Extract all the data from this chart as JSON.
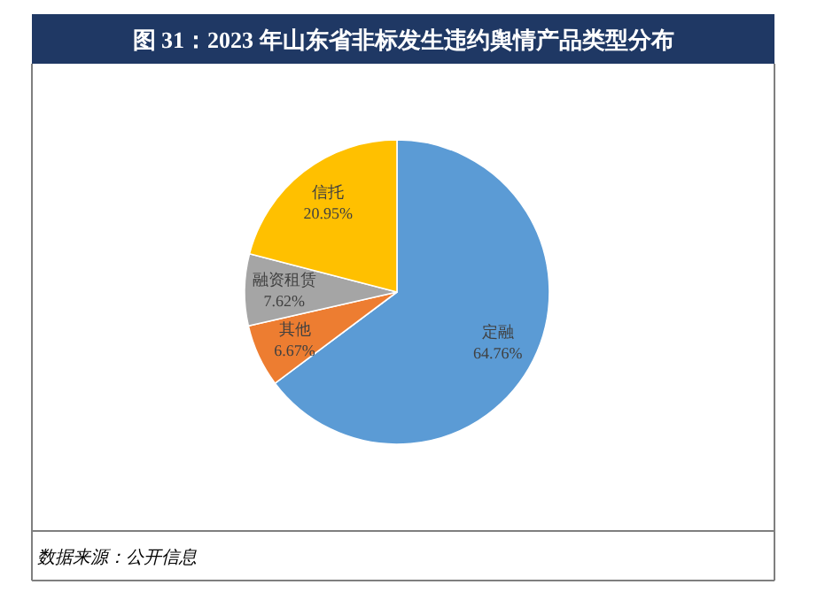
{
  "chart_data": {
    "type": "pie",
    "title": "图 31：2023 年山东省非标发生违约舆情产品类型分布",
    "categories": [
      "定融",
      "其他",
      "融资租赁",
      "信托"
    ],
    "values": [
      64.76,
      6.67,
      7.62,
      20.95
    ],
    "value_labels": [
      "64.76%",
      "6.67%",
      "7.62%",
      "20.95%"
    ],
    "colors": [
      "#5b9bd5",
      "#ed7d31",
      "#a5a5a5",
      "#ffc000"
    ],
    "annotations": [
      "数据来源：公开信息"
    ]
  }
}
